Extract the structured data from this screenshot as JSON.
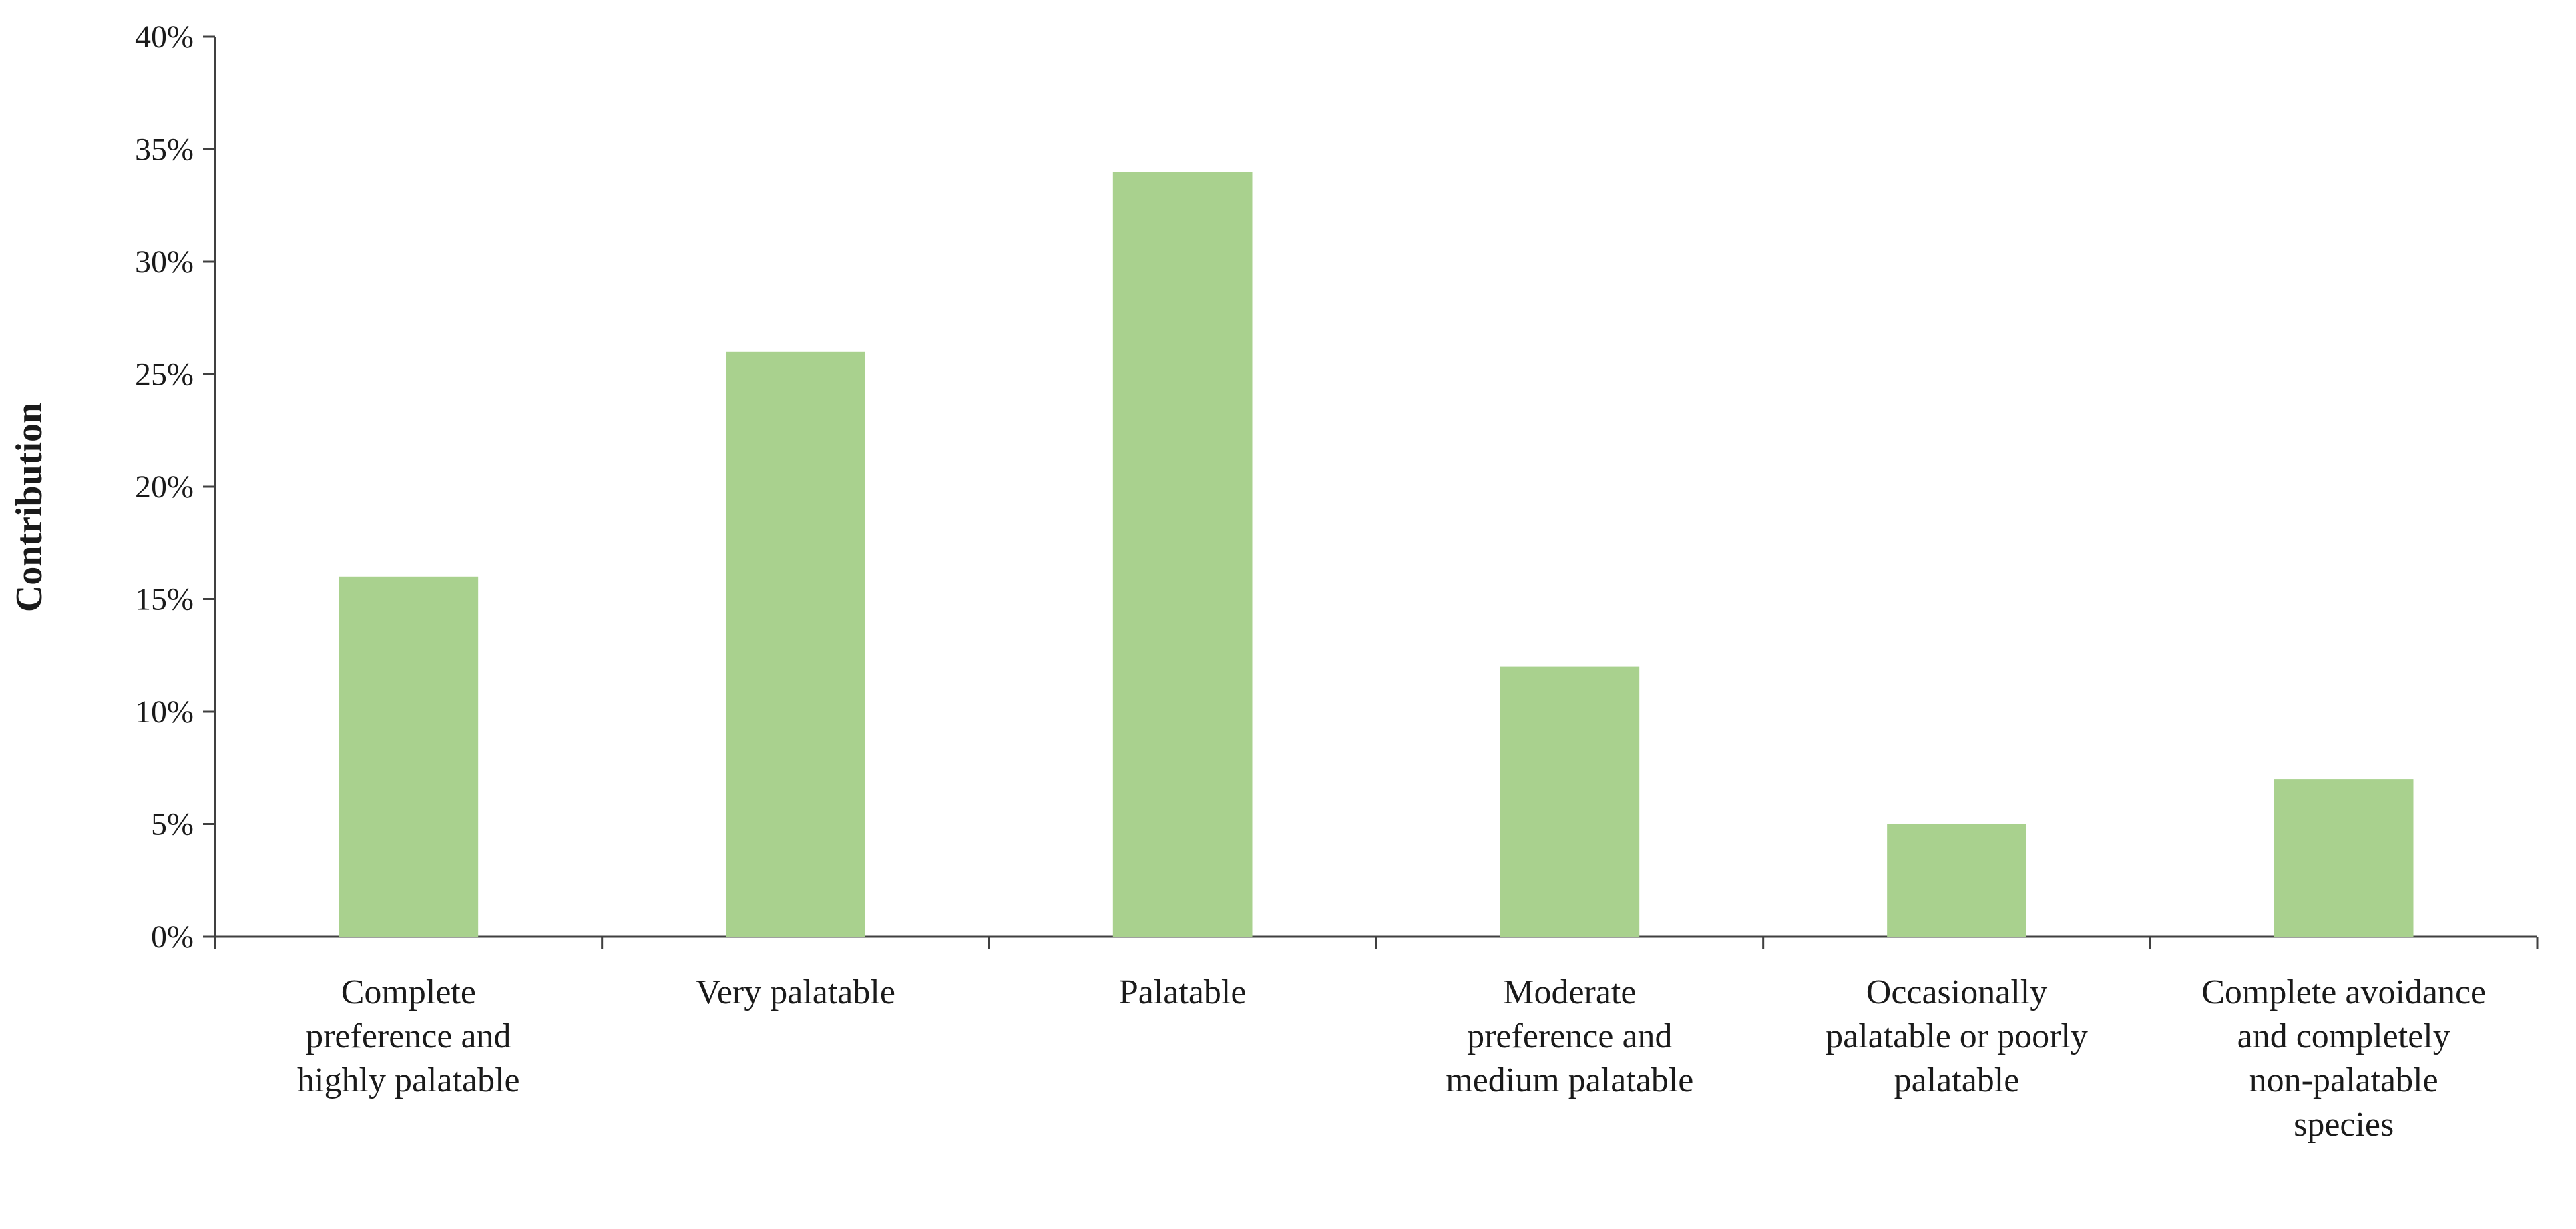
{
  "chart_data": {
    "type": "bar",
    "title": "",
    "xlabel": "",
    "ylabel": "Contribution",
    "ylim": [
      0,
      40
    ],
    "ytick_values": [
      0,
      5,
      10,
      15,
      20,
      25,
      30,
      35,
      40
    ],
    "ytick_labels": [
      "0%",
      "5%",
      "10%",
      "15%",
      "20%",
      "25%",
      "30%",
      "35%",
      "40%"
    ],
    "categories": [
      [
        "Complete",
        "preference and",
        "highly palatable"
      ],
      [
        "Very palatable"
      ],
      [
        "Palatable"
      ],
      [
        "Moderate",
        "preference and",
        "medium palatable"
      ],
      [
        "Occasionally",
        "palatable or poorly",
        "palatable"
      ],
      [
        "Complete avoidance",
        "and completely",
        "non-palatable",
        "species"
      ]
    ],
    "values": [
      16,
      26,
      34,
      12,
      5,
      7
    ],
    "unit": "%",
    "bar_color": "#a9d18e",
    "grid": false,
    "legend": "none"
  }
}
